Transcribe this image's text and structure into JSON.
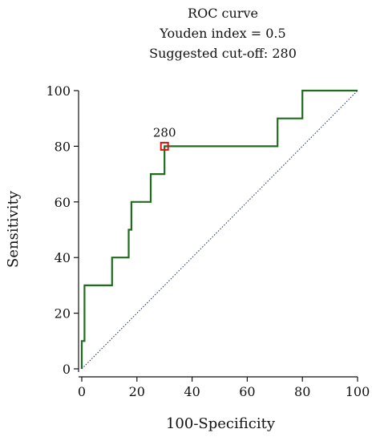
{
  "chart_data": {
    "type": "line",
    "title_lines": [
      "ROC curve",
      "Youden index = 0.5",
      "Suggested cut-off: 280"
    ],
    "xlabel": "100-Specificity",
    "ylabel": "Sensitivity",
    "xlim": [
      0,
      100
    ],
    "ylim": [
      0,
      100
    ],
    "xticks": [
      0,
      20,
      40,
      60,
      80,
      100
    ],
    "yticks": [
      0,
      20,
      40,
      60,
      80,
      100
    ],
    "grid": false,
    "series": [
      {
        "style": "step",
        "color": "#1f6b1f",
        "x": [
          0,
          0,
          1,
          1,
          2,
          2,
          11,
          11,
          17,
          17,
          18,
          18,
          25,
          25,
          30,
          30,
          71,
          71,
          80,
          80,
          100
        ],
        "y": [
          0,
          10,
          10,
          30,
          30,
          30,
          30,
          40,
          40,
          50,
          50,
          60,
          60,
          70,
          70,
          80,
          80,
          90,
          90,
          100,
          100
        ]
      },
      {
        "style": "dotted",
        "color": "#1a2a5a",
        "x": [
          0,
          100
        ],
        "y": [
          0,
          100
        ]
      }
    ],
    "cutoff_point": {
      "x": 30,
      "y": 80,
      "label": "280",
      "color": "#e01010"
    }
  }
}
